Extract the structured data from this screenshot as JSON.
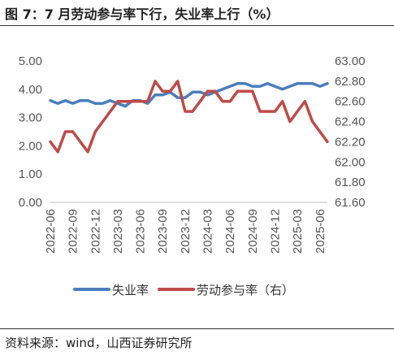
{
  "title": "图 7：7 月劳动参与率下行，失业率上行（%）",
  "source": "资料来源：wind，山西证券研究所",
  "colors": {
    "unemployment": "#4a7ebb",
    "participation": "#be4b48"
  },
  "chart_data": {
    "type": "line",
    "title": "图 7：7 月劳动参与率下行，失业率上行（%）",
    "xlabel": "",
    "ylabel": "",
    "x_tick_labels": [
      "2022-06",
      "2022-09",
      "2022-12",
      "2023-03",
      "2023-06",
      "2023-09",
      "2023-12",
      "2024-03",
      "2024-06",
      "2024-09",
      "2024-12",
      "2025-03",
      "2025-06"
    ],
    "ylim_left": [
      0,
      5
    ],
    "ylim_right": [
      61.6,
      63.0
    ],
    "left_ticks": [
      "0.00",
      "1.00",
      "2.00",
      "3.00",
      "4.00",
      "5.00"
    ],
    "right_ticks": [
      "61.60",
      "61.80",
      "62.00",
      "62.20",
      "62.40",
      "62.60",
      "62.80",
      "63.00"
    ],
    "grid": false,
    "legend_position": "bottom",
    "x": [
      "2022-06",
      "2022-07",
      "2022-08",
      "2022-09",
      "2022-10",
      "2022-11",
      "2022-12",
      "2023-01",
      "2023-02",
      "2023-03",
      "2023-04",
      "2023-05",
      "2023-06",
      "2023-07",
      "2023-08",
      "2023-09",
      "2023-10",
      "2023-11",
      "2023-12",
      "2024-01",
      "2024-02",
      "2024-03",
      "2024-04",
      "2024-05",
      "2024-06",
      "2024-07",
      "2024-08",
      "2024-09",
      "2024-10",
      "2024-11",
      "2024-12",
      "2025-01",
      "2025-02",
      "2025-03",
      "2025-04",
      "2025-05",
      "2025-06",
      "2025-07"
    ],
    "series": [
      {
        "name": "失业率",
        "axis": "left",
        "values": [
          3.6,
          3.5,
          3.6,
          3.5,
          3.6,
          3.6,
          3.5,
          3.5,
          3.6,
          3.5,
          3.4,
          3.6,
          3.6,
          3.5,
          3.8,
          3.8,
          3.9,
          3.7,
          3.7,
          3.9,
          3.9,
          3.8,
          3.9,
          4.0,
          4.1,
          4.2,
          4.2,
          4.1,
          4.1,
          4.2,
          4.1,
          4.0,
          4.1,
          4.2,
          4.2,
          4.2,
          4.1,
          4.2
        ]
      },
      {
        "name": "劳动参与率（右）",
        "axis": "right",
        "values": [
          62.2,
          62.1,
          62.3,
          62.3,
          62.2,
          62.1,
          62.3,
          62.4,
          62.5,
          62.6,
          62.6,
          62.6,
          62.6,
          62.6,
          62.8,
          62.7,
          62.7,
          62.8,
          62.5,
          62.5,
          62.6,
          62.7,
          62.7,
          62.6,
          62.6,
          62.7,
          62.7,
          62.7,
          62.5,
          62.5,
          62.5,
          62.6,
          62.4,
          62.5,
          62.6,
          62.4,
          62.3,
          62.2
        ]
      }
    ]
  }
}
